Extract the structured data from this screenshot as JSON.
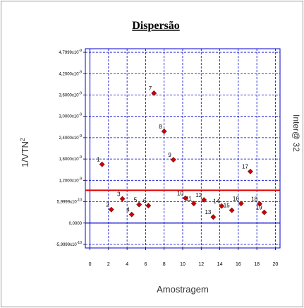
{
  "chart_data": {
    "type": "scatter",
    "title": "Dispersão",
    "xlabel": "Amostragem",
    "ylabel": "1/VTN",
    "ylabel_sup": "2",
    "side_label": "Inter@ 32",
    "xlim": [
      -0.5,
      20.5
    ],
    "ylim": [
      -7e-10,
      4.9e-09
    ],
    "x_ticks": [
      "0",
      "2",
      "4",
      "6",
      "8",
      "10",
      "12",
      "14",
      "16",
      "18",
      "20"
    ],
    "y_ticks": [
      {
        "value": 4.7999e-09,
        "label": "4,7999x10",
        "exp": "-9"
      },
      {
        "value": 4.2e-09,
        "label": "4,2000x10",
        "exp": "-9"
      },
      {
        "value": 3.6e-09,
        "label": "3,6000x10",
        "exp": "-9"
      },
      {
        "value": 3e-09,
        "label": "3,0000x10",
        "exp": "-9"
      },
      {
        "value": 2.4e-09,
        "label": "2,4000x10",
        "exp": "-9"
      },
      {
        "value": 1.8e-09,
        "label": "1,8000x10",
        "exp": "-9"
      },
      {
        "value": 1.2e-09,
        "label": "1,2000x10",
        "exp": "-9"
      },
      {
        "value": 6e-10,
        "label": "5,9999x10",
        "exp": "-10"
      },
      {
        "value": 0,
        "label": "0,0000",
        "exp": ""
      },
      {
        "value": -6e-10,
        "label": "-5,9999x10",
        "exp": "-10"
      }
    ],
    "points": [
      {
        "label": "1",
        "x": 1.3,
        "y": 1.65e-09
      },
      {
        "label": "2",
        "x": 2.3,
        "y": 3.8e-10
      },
      {
        "label": "3",
        "x": 3.5,
        "y": 6.8e-10
      },
      {
        "label": "4",
        "x": 4.5,
        "y": 2.4e-10
      },
      {
        "label": "5",
        "x": 5.3,
        "y": 5.2e-10
      },
      {
        "label": "6",
        "x": 6.3,
        "y": 4.9e-10
      },
      {
        "label": "7",
        "x": 6.9,
        "y": 3.65e-09
      },
      {
        "label": "8",
        "x": 8.0,
        "y": 2.58e-09
      },
      {
        "label": "9",
        "x": 9.0,
        "y": 1.78e-09
      },
      {
        "label": "10",
        "x": 10.3,
        "y": 7e-10
      },
      {
        "label": "11",
        "x": 11.2,
        "y": 5.5e-10
      },
      {
        "label": "12",
        "x": 12.3,
        "y": 6.5e-10
      },
      {
        "label": "13",
        "x": 13.3,
        "y": 1.7e-10
      },
      {
        "label": "14",
        "x": 14.2,
        "y": 4.8e-10
      },
      {
        "label": "15",
        "x": 15.3,
        "y": 3.6e-10
      },
      {
        "label": "16",
        "x": 16.3,
        "y": 5.5e-10
      },
      {
        "label": "17",
        "x": 17.3,
        "y": 1.45e-09
      },
      {
        "label": "18",
        "x": 18.3,
        "y": 5.4e-10
      },
      {
        "label": "19",
        "x": 18.8,
        "y": 3e-10
      }
    ],
    "reference_lines": [
      {
        "type": "mean",
        "y": 9.2e-10,
        "color": "#e00000"
      },
      {
        "type": "zero",
        "y": 0,
        "color": "#0000cc"
      }
    ],
    "grid": true,
    "colors": {
      "point": "#cc0000",
      "grid": "#0000cc",
      "axis": "#0000cc",
      "mean_line": "#e00000"
    }
  }
}
